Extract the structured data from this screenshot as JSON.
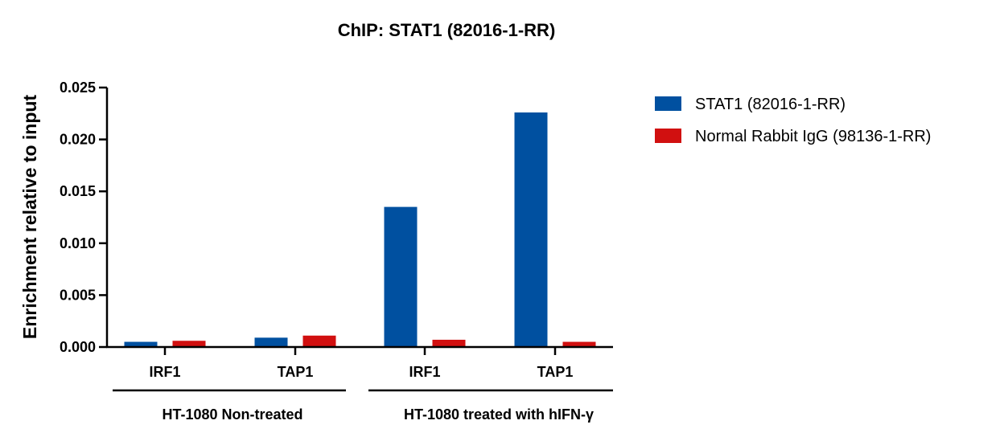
{
  "chart_data": {
    "type": "bar",
    "title": "ChIP: STAT1 (82016-1-RR)",
    "ylabel": "Enrichment relative to input",
    "xlabel": "",
    "ylim": [
      0,
      0.025
    ],
    "yticks": [
      "0.000",
      "0.005",
      "0.010",
      "0.015",
      "0.020",
      "0.025"
    ],
    "ytick_values": [
      0,
      0.005,
      0.01,
      0.015,
      0.02,
      0.025
    ],
    "categories": [
      "IRF1",
      "TAP1",
      "IRF1",
      "TAP1"
    ],
    "groups": [
      {
        "label": "HT-1080 Non-treated",
        "categories": [
          0,
          1
        ]
      },
      {
        "label": "HT-1080 treated with hIFN-γ",
        "categories": [
          2,
          3
        ]
      }
    ],
    "series": [
      {
        "name": "STAT1 (82016-1-RR)",
        "color": "#0050a0",
        "values": [
          0.0005,
          0.0009,
          0.0135,
          0.0226
        ]
      },
      {
        "name": "Normal Rabbit IgG (98136-1-RR)",
        "color": "#d11010",
        "values": [
          0.0006,
          0.0011,
          0.0007,
          0.0005
        ]
      }
    ],
    "legend_position": "top-right",
    "grid": false
  }
}
